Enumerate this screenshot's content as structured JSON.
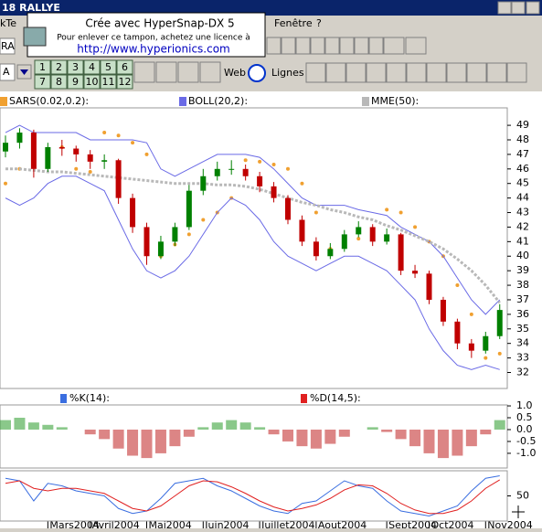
{
  "ui": {
    "window_title": "18  RALLYE",
    "menu": [
      "kTe",
      "Fenêtre",
      "?"
    ],
    "stamp": [
      "Crée avec HyperSnap-DX 5",
      "Pour enlever ce tampon, achetez une licence à",
      "http://www.hyperionics.com"
    ],
    "toolbar": {
      "combo": "RA",
      "font": "A",
      "numbers": [
        "1",
        "2",
        "3",
        "4",
        "5",
        "6",
        "7",
        "8",
        "9",
        "10",
        "11",
        "12"
      ],
      "web": "Web",
      "lines": "Lignes"
    }
  },
  "chart_data": [
    {
      "type": "candlestick",
      "categories": [
        null,
        null,
        null,
        "Mars2004",
        null,
        null,
        "Avril2004",
        null,
        null,
        null,
        "Mai2004",
        null,
        null,
        null,
        "Juin2004",
        null,
        null,
        null,
        "Juillet2004",
        null,
        null,
        null,
        "Aout2004",
        null,
        null,
        null,
        null,
        "Sept2004",
        null,
        null,
        "Oct2004",
        null,
        null,
        null,
        "Nov2004",
        null
      ],
      "ohlc": [
        [
          47.2,
          48.3,
          46.8,
          47.8
        ],
        [
          47.8,
          48.8,
          47.4,
          48.5
        ],
        [
          48.5,
          48.7,
          45.4,
          46
        ],
        [
          46,
          47.8,
          45.8,
          47.5
        ],
        [
          47.5,
          48,
          46.9,
          47.4
        ],
        [
          47.4,
          47.6,
          46.5,
          47
        ],
        [
          47,
          47.3,
          46,
          46.5
        ],
        [
          46.5,
          47,
          46,
          46.6
        ],
        [
          46.6,
          46.7,
          43.6,
          44
        ],
        [
          44,
          44.3,
          41.6,
          42
        ],
        [
          42,
          42.3,
          39.4,
          40
        ],
        [
          40,
          41.4,
          39.8,
          41
        ],
        [
          41,
          42.3,
          40.7,
          42
        ],
        [
          42,
          44.9,
          41.8,
          44.5
        ],
        [
          44.5,
          46,
          44.2,
          45.5
        ],
        [
          45.5,
          46.5,
          45.2,
          46
        ],
        [
          46,
          46.6,
          45.6,
          46
        ],
        [
          46,
          46.3,
          45.2,
          45.5
        ],
        [
          45.5,
          45.8,
          44.4,
          44.8
        ],
        [
          44.8,
          45.1,
          43.7,
          44
        ],
        [
          44,
          44.2,
          42.2,
          42.5
        ],
        [
          42.5,
          42.8,
          40.7,
          41
        ],
        [
          41,
          41.3,
          39.7,
          40
        ],
        [
          40,
          40.9,
          39.8,
          40.5
        ],
        [
          40.5,
          41.8,
          40.3,
          41.5
        ],
        [
          41.5,
          42.4,
          41.3,
          42
        ],
        [
          42,
          42.2,
          40.7,
          41
        ],
        [
          41,
          41.9,
          40.8,
          41.5
        ],
        [
          41.5,
          41.6,
          38.7,
          39
        ],
        [
          39,
          39.4,
          38.5,
          38.8
        ],
        [
          38.8,
          39,
          36.7,
          37
        ],
        [
          37,
          37.2,
          35.2,
          35.5
        ],
        [
          35.5,
          35.7,
          33.6,
          34
        ],
        [
          34,
          34.3,
          33,
          33.5
        ],
        [
          33.5,
          34.8,
          33.3,
          34.5
        ],
        [
          34.5,
          36.7,
          34.3,
          36.3
        ]
      ],
      "up_color": "#008000",
      "down_color": "#c00000",
      "series": [
        {
          "name": "SARS(0.02,0.2):",
          "color": "#f0a030",
          "style": "dots",
          "values": [
            45,
            46,
            46.8,
            47.2,
            47.5,
            46,
            45.8,
            48.5,
            48.3,
            47.8,
            47,
            40,
            40.8,
            41.5,
            42.5,
            43,
            44,
            46.6,
            46.5,
            46.3,
            46,
            45,
            43,
            40.5,
            41,
            41.2,
            41.5,
            43.2,
            43,
            42,
            41,
            40,
            38,
            36,
            33,
            33.3
          ]
        },
        {
          "name": "BOLL(20,2):",
          "color": "#6a6ae6",
          "style": "band",
          "values": [
            48.5,
            49,
            48.5,
            48.5,
            48.5,
            48.5,
            48,
            48,
            48,
            48,
            47.8,
            46,
            45.5,
            46,
            46.5,
            47,
            47,
            47,
            46.8,
            46,
            45,
            44,
            43.5,
            43.5,
            43.5,
            43.2,
            43,
            42.8,
            42,
            41.5,
            41,
            40,
            38.5,
            37,
            36,
            37
          ],
          "lower": [
            44,
            43.5,
            44,
            45,
            45.5,
            45.5,
            45,
            44.5,
            42.5,
            40.5,
            39,
            38.5,
            39,
            40,
            41.5,
            43,
            44,
            43.5,
            42.5,
            41,
            40,
            39.5,
            39,
            39.5,
            40,
            40,
            39.5,
            39,
            38,
            37,
            35,
            33.5,
            32.5,
            32.2,
            32.5,
            32.2
          ]
        },
        {
          "name": "MME(50):",
          "color": "#b8b8b8",
          "style": "dashed",
          "values": [
            46,
            46,
            45.9,
            45.8,
            45.8,
            45.7,
            45.6,
            45.5,
            45.4,
            45.3,
            45.2,
            45.1,
            45,
            45,
            45,
            44.9,
            44.9,
            44.8,
            44.6,
            44.3,
            44,
            43.7,
            43.5,
            43.2,
            43,
            42.7,
            42.5,
            42.1,
            41.8,
            41.4,
            41,
            40.5,
            39.8,
            39,
            38,
            36.8
          ]
        }
      ],
      "ylim": [
        30.9,
        50.2
      ],
      "yticks": [
        32,
        33,
        34,
        35,
        36,
        37,
        38,
        39,
        40,
        41,
        42,
        43,
        44,
        45,
        46,
        47,
        48,
        49
      ]
    },
    {
      "type": "bar",
      "pos_color": "#2a9a2a",
      "neg_color": "#c02020",
      "values": [
        0.4,
        0.5,
        0.3,
        0.2,
        0.1,
        0,
        -0.2,
        -0.4,
        -0.8,
        -1.1,
        -1.2,
        -1,
        -0.7,
        -0.3,
        0.1,
        0.3,
        0.4,
        0.3,
        0.1,
        -0.2,
        -0.5,
        -0.7,
        -0.8,
        -0.6,
        -0.3,
        0,
        0.1,
        -0.1,
        -0.4,
        -0.7,
        -1,
        -1.2,
        -1.1,
        -0.7,
        -0.2,
        0.4
      ],
      "ylim": [
        -1.62,
        1.04
      ],
      "yticks": [
        {
          "value": 1,
          "label": "1.0"
        },
        {
          "value": 0.5,
          "label": "0.5"
        },
        {
          "value": 0,
          "label": "0.0"
        },
        {
          "value": -0.5,
          "label": "-0.5"
        },
        {
          "value": -1,
          "label": "-1.0"
        }
      ]
    },
    {
      "type": "line",
      "series": [
        {
          "name": "%K(14):",
          "color": "#3a6ee0",
          "values": [
            85,
            80,
            40,
            75,
            70,
            60,
            55,
            50,
            25,
            15,
            20,
            45,
            75,
            80,
            85,
            70,
            60,
            45,
            30,
            20,
            15,
            35,
            40,
            60,
            80,
            70,
            65,
            40,
            20,
            15,
            10,
            20,
            30,
            60,
            85,
            90
          ]
        },
        {
          "name": "%D(14,5):",
          "color": "#e02020",
          "values": [
            75,
            80,
            65,
            60,
            65,
            65,
            60,
            55,
            40,
            25,
            20,
            30,
            50,
            70,
            80,
            78,
            68,
            55,
            40,
            28,
            20,
            25,
            32,
            45,
            62,
            72,
            70,
            55,
            35,
            22,
            15,
            15,
            22,
            40,
            65,
            82
          ]
        }
      ],
      "ylim": [
        0,
        100
      ],
      "yticks": [
        50
      ]
    }
  ]
}
